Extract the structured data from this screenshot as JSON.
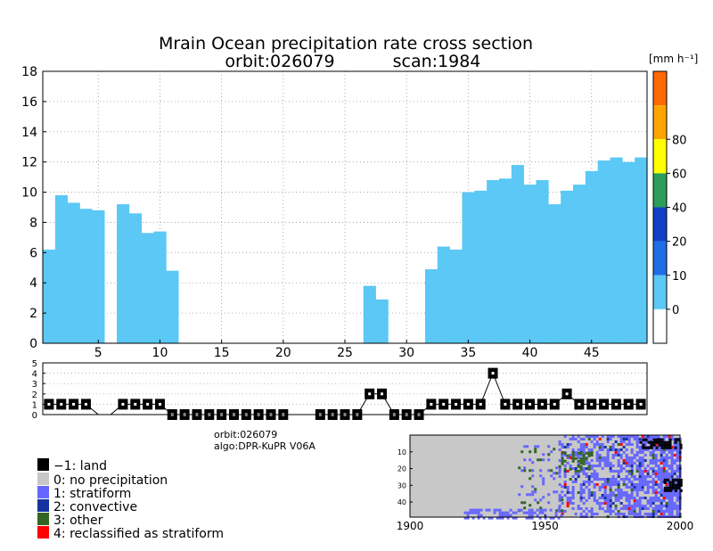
{
  "title": {
    "line1": "Mrain Ocean precipitation rate cross section",
    "line2_orbit": "orbit:026079",
    "line2_scan": "scan:1984"
  },
  "colorbar": {
    "unit_label": "[mm h⁻¹]",
    "tick_labels": [
      "0",
      "10",
      "20",
      "40",
      "60",
      "80"
    ],
    "colors": [
      "#ffffff",
      "#5bc8f5",
      "#1e6ee6",
      "#1040c8",
      "#2a9e5a",
      "#ffff00",
      "#ffa500",
      "#ff6a00"
    ]
  },
  "info": {
    "orbit": "orbit:026079",
    "algo": "algo:DPR-KuPR V06A"
  },
  "legend": {
    "items": [
      {
        "label": "−1: land",
        "color": "#000000"
      },
      {
        "label": "0: no precipitation",
        "color": "#c8c8c8"
      },
      {
        "label": "1: stratiform",
        "color": "#6666ff"
      },
      {
        "label": "2: convective",
        "color": "#1432a0"
      },
      {
        "label": "3: other",
        "color": "#336622"
      },
      {
        "label": "4: reclassified as stratiform",
        "color": "#ff0000"
      }
    ]
  },
  "chart_data": [
    {
      "type": "bar",
      "name": "precipitation-rate",
      "x": [
        1,
        2,
        3,
        4,
        5,
        6,
        7,
        8,
        9,
        10,
        11,
        12,
        13,
        14,
        15,
        16,
        17,
        18,
        19,
        20,
        21,
        22,
        23,
        24,
        25,
        26,
        27,
        28,
        29,
        30,
        31,
        32,
        33,
        34,
        35,
        36,
        37,
        38,
        39,
        40,
        41,
        42,
        43,
        44,
        45,
        46,
        47,
        48,
        49
      ],
      "values": [
        6.2,
        9.8,
        9.3,
        8.9,
        8.8,
        0,
        9.2,
        8.6,
        7.3,
        7.4,
        4.8,
        0,
        0,
        0,
        0,
        0,
        0,
        0,
        0,
        0,
        0,
        0,
        0,
        0,
        0,
        0,
        3.8,
        2.9,
        0,
        0,
        0,
        4.9,
        6.4,
        6.2,
        10.0,
        10.1,
        10.8,
        10.9,
        11.8,
        10.5,
        10.8,
        9.2,
        10.1,
        10.5,
        11.4,
        12.1,
        12.3,
        12.0,
        12.3
      ],
      "xlim": [
        1,
        49
      ],
      "ylim": [
        0,
        18
      ],
      "x_ticks": [
        5,
        10,
        15,
        20,
        25,
        30,
        35,
        40,
        45
      ],
      "y_ticks": [
        0,
        2,
        4,
        6,
        8,
        10,
        12,
        14,
        16,
        18
      ],
      "bar_color": "#5bc8f5",
      "grid": true
    },
    {
      "type": "line",
      "name": "rain-type-flag",
      "x": [
        1,
        2,
        3,
        4,
        5,
        6,
        7,
        8,
        9,
        10,
        11,
        12,
        13,
        14,
        15,
        16,
        17,
        18,
        19,
        20,
        21,
        22,
        23,
        24,
        25,
        26,
        27,
        28,
        29,
        30,
        31,
        32,
        33,
        34,
        35,
        36,
        37,
        38,
        39,
        40,
        41,
        42,
        43,
        44,
        45,
        46,
        47,
        48,
        49
      ],
      "values": [
        1,
        1,
        1,
        1,
        0,
        0,
        1,
        1,
        1,
        1,
        0,
        0,
        0,
        0,
        0,
        0,
        0,
        0,
        0,
        0,
        0,
        0,
        0,
        0,
        0,
        0,
        2,
        2,
        0,
        0,
        0,
        1,
        1,
        1,
        1,
        1,
        4,
        1,
        1,
        1,
        1,
        1,
        2,
        1,
        1,
        1,
        1,
        1,
        1
      ],
      "flagged": [
        true,
        true,
        true,
        true,
        false,
        false,
        true,
        true,
        true,
        true,
        true,
        true,
        true,
        true,
        true,
        true,
        true,
        true,
        true,
        true,
        false,
        false,
        true,
        true,
        true,
        true,
        true,
        true,
        true,
        true,
        true,
        true,
        true,
        true,
        true,
        true,
        true,
        true,
        true,
        true,
        true,
        true,
        true,
        true,
        true,
        true,
        true,
        true,
        true
      ],
      "xlim": [
        1,
        49
      ],
      "ylim": [
        0,
        5
      ],
      "y_ticks": [
        0,
        1,
        2,
        3,
        4,
        5
      ],
      "grid": true
    },
    {
      "type": "heatmap",
      "name": "rain-type-map",
      "x_ticks": [
        1900,
        1950,
        2000
      ],
      "y_ticks": [
        10,
        20,
        30,
        40
      ],
      "xlim": [
        1900,
        2000
      ],
      "ylim": [
        0,
        49
      ],
      "background": "#c8c8c8"
    }
  ]
}
